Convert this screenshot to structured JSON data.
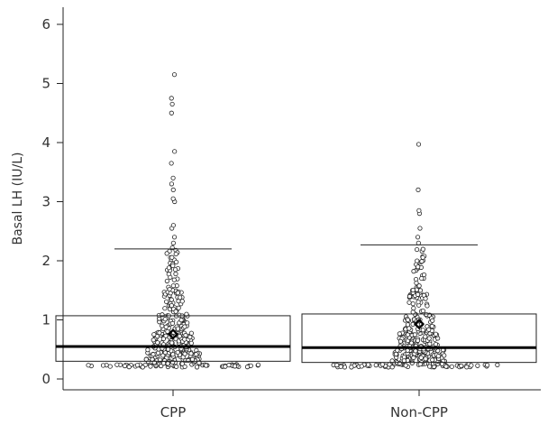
{
  "chart_data": {
    "type": "box",
    "ylabel": "Basal LH (IU/L)",
    "xlabel": "",
    "categories": [
      "CPP",
      "Non-CPP"
    ],
    "ylim": [
      0,
      6
    ],
    "yticks": [
      0,
      1,
      2,
      3,
      4,
      5,
      6
    ],
    "series": [
      {
        "category": "CPP",
        "box": {
          "q1": 0.3,
          "median": 0.55,
          "q3": 1.07,
          "upper_whisker": 2.2,
          "mean": 0.76
        },
        "outliers": [
          2.22,
          2.3,
          2.4,
          2.55,
          2.6,
          3.0,
          3.05,
          3.2,
          3.3,
          3.4,
          3.65,
          3.85,
          4.5,
          4.65,
          4.75,
          5.15
        ]
      },
      {
        "category": "Non-CPP",
        "box": {
          "q1": 0.28,
          "median": 0.53,
          "q3": 1.1,
          "upper_whisker": 2.27,
          "mean": 0.93
        },
        "outliers": [
          2.3,
          2.4,
          2.55,
          2.8,
          2.85,
          3.2,
          3.97
        ]
      }
    ]
  }
}
